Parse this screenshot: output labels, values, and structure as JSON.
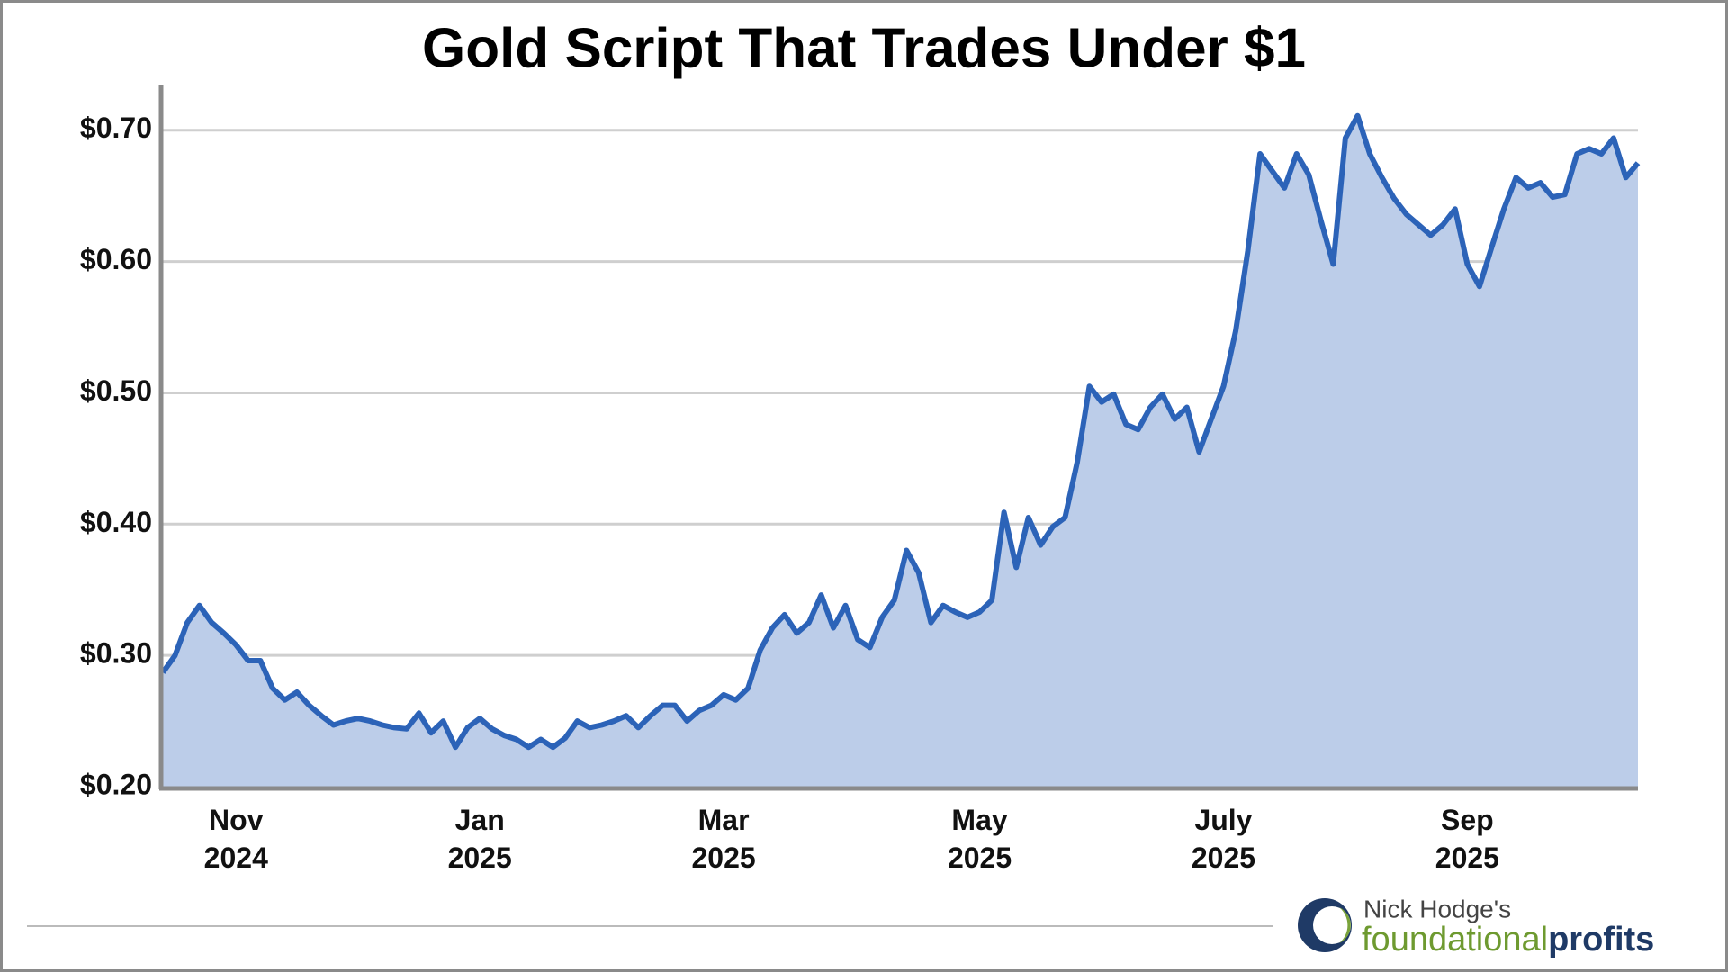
{
  "chart_data": {
    "type": "area",
    "title": "Gold Script That Trades Under $1",
    "categories": [
      null,
      null,
      null,
      null,
      null,
      null,
      "Nov 2024",
      null,
      null,
      null,
      null,
      null,
      null,
      null,
      null,
      null,
      null,
      null,
      null,
      null,
      null,
      null,
      null,
      null,
      null,
      null,
      "Jan 2025",
      null,
      null,
      null,
      null,
      null,
      null,
      null,
      null,
      null,
      null,
      null,
      null,
      null,
      null,
      null,
      null,
      null,
      null,
      null,
      "Mar 2025",
      null,
      null,
      null,
      null,
      null,
      null,
      null,
      null,
      null,
      null,
      null,
      null,
      null,
      null,
      null,
      null,
      null,
      null,
      null,
      null,
      "May 2025",
      null,
      null,
      null,
      null,
      null,
      null,
      null,
      null,
      null,
      null,
      null,
      null,
      null,
      null,
      null,
      null,
      null,
      null,
      null,
      "July 2025",
      null,
      null,
      null,
      null,
      null,
      null,
      null,
      null,
      null,
      null,
      null,
      null,
      null,
      null,
      null,
      null,
      null,
      null,
      null,
      "Sep 2025",
      null,
      null,
      null,
      null,
      null,
      null,
      null,
      null,
      null,
      null,
      null,
      null,
      null,
      null
    ],
    "series": [
      {
        "color": "#2c63b8",
        "fill": "#bccde9",
        "values": [
          0.287,
          0.3,
          0.325,
          0.338,
          0.325,
          0.317,
          0.308,
          0.296,
          0.296,
          0.275,
          0.266,
          0.272,
          0.262,
          0.254,
          0.247,
          0.25,
          0.252,
          0.25,
          0.247,
          0.245,
          0.244,
          0.256,
          0.241,
          0.25,
          0.23,
          0.245,
          0.252,
          0.244,
          0.239,
          0.236,
          0.23,
          0.236,
          0.23,
          0.237,
          0.25,
          0.245,
          0.247,
          0.25,
          0.254,
          0.245,
          0.254,
          0.262,
          0.262,
          0.25,
          0.258,
          0.262,
          0.27,
          0.266,
          0.275,
          0.304,
          0.321,
          0.331,
          0.317,
          0.325,
          0.346,
          0.321,
          0.338,
          0.312,
          0.306,
          0.329,
          0.342,
          0.38,
          0.363,
          0.325,
          0.338,
          0.333,
          0.329,
          0.333,
          0.342,
          0.409,
          0.367,
          0.405,
          0.384,
          0.398,
          0.405,
          0.447,
          0.505,
          0.493,
          0.499,
          0.476,
          0.472,
          0.489,
          0.499,
          0.48,
          0.489,
          0.455,
          0.48,
          0.505,
          0.547,
          0.608,
          0.682,
          0.669,
          0.656,
          0.682,
          0.666,
          0.631,
          0.598,
          0.694,
          0.711,
          0.682,
          0.664,
          0.648,
          0.636,
          0.628,
          0.62,
          0.628,
          0.64,
          0.598,
          0.581,
          0.611,
          0.64,
          0.664,
          0.656,
          0.66,
          0.649,
          0.651,
          0.682,
          0.686,
          0.682,
          0.694,
          0.664,
          0.675
        ]
      }
    ],
    "ylim": [
      0.2,
      0.73
    ],
    "yticks": [
      {
        "value": 0.2,
        "label": "$0.20"
      },
      {
        "value": 0.3,
        "label": "$0.30"
      },
      {
        "value": 0.4,
        "label": "$0.40"
      },
      {
        "value": 0.5,
        "label": "$0.50"
      },
      {
        "value": 0.6,
        "label": "$0.60"
      },
      {
        "value": 0.7,
        "label": "$0.70"
      }
    ],
    "grid": true
  },
  "logo": {
    "byline": "Nick Hodge's",
    "word1": "foundational",
    "word2": "profits"
  }
}
